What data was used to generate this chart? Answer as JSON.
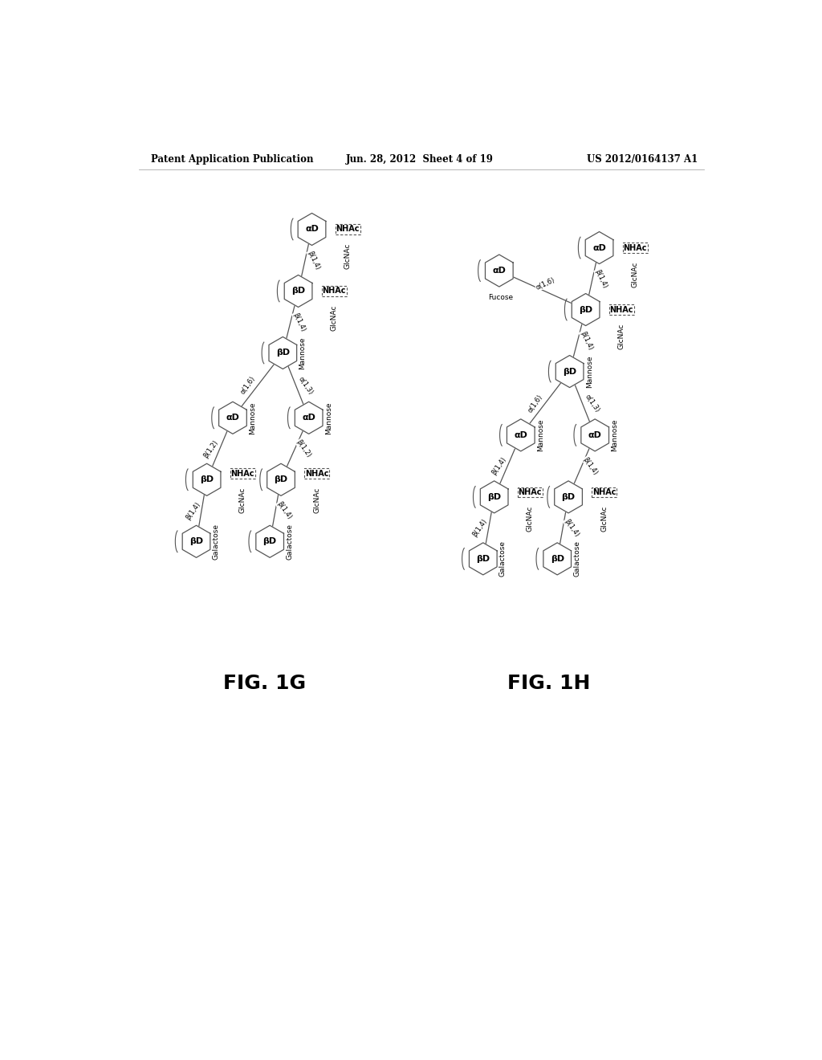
{
  "title_left": "Patent Application Publication",
  "title_center": "Jun. 28, 2012  Sheet 4 of 19",
  "title_right": "US 2012/0164137 A1",
  "fig_label_G": "FIG. 1G",
  "fig_label_H": "FIG. 1H",
  "background_color": "#ffffff",
  "line_color": "#555555",
  "text_color": "#000000"
}
